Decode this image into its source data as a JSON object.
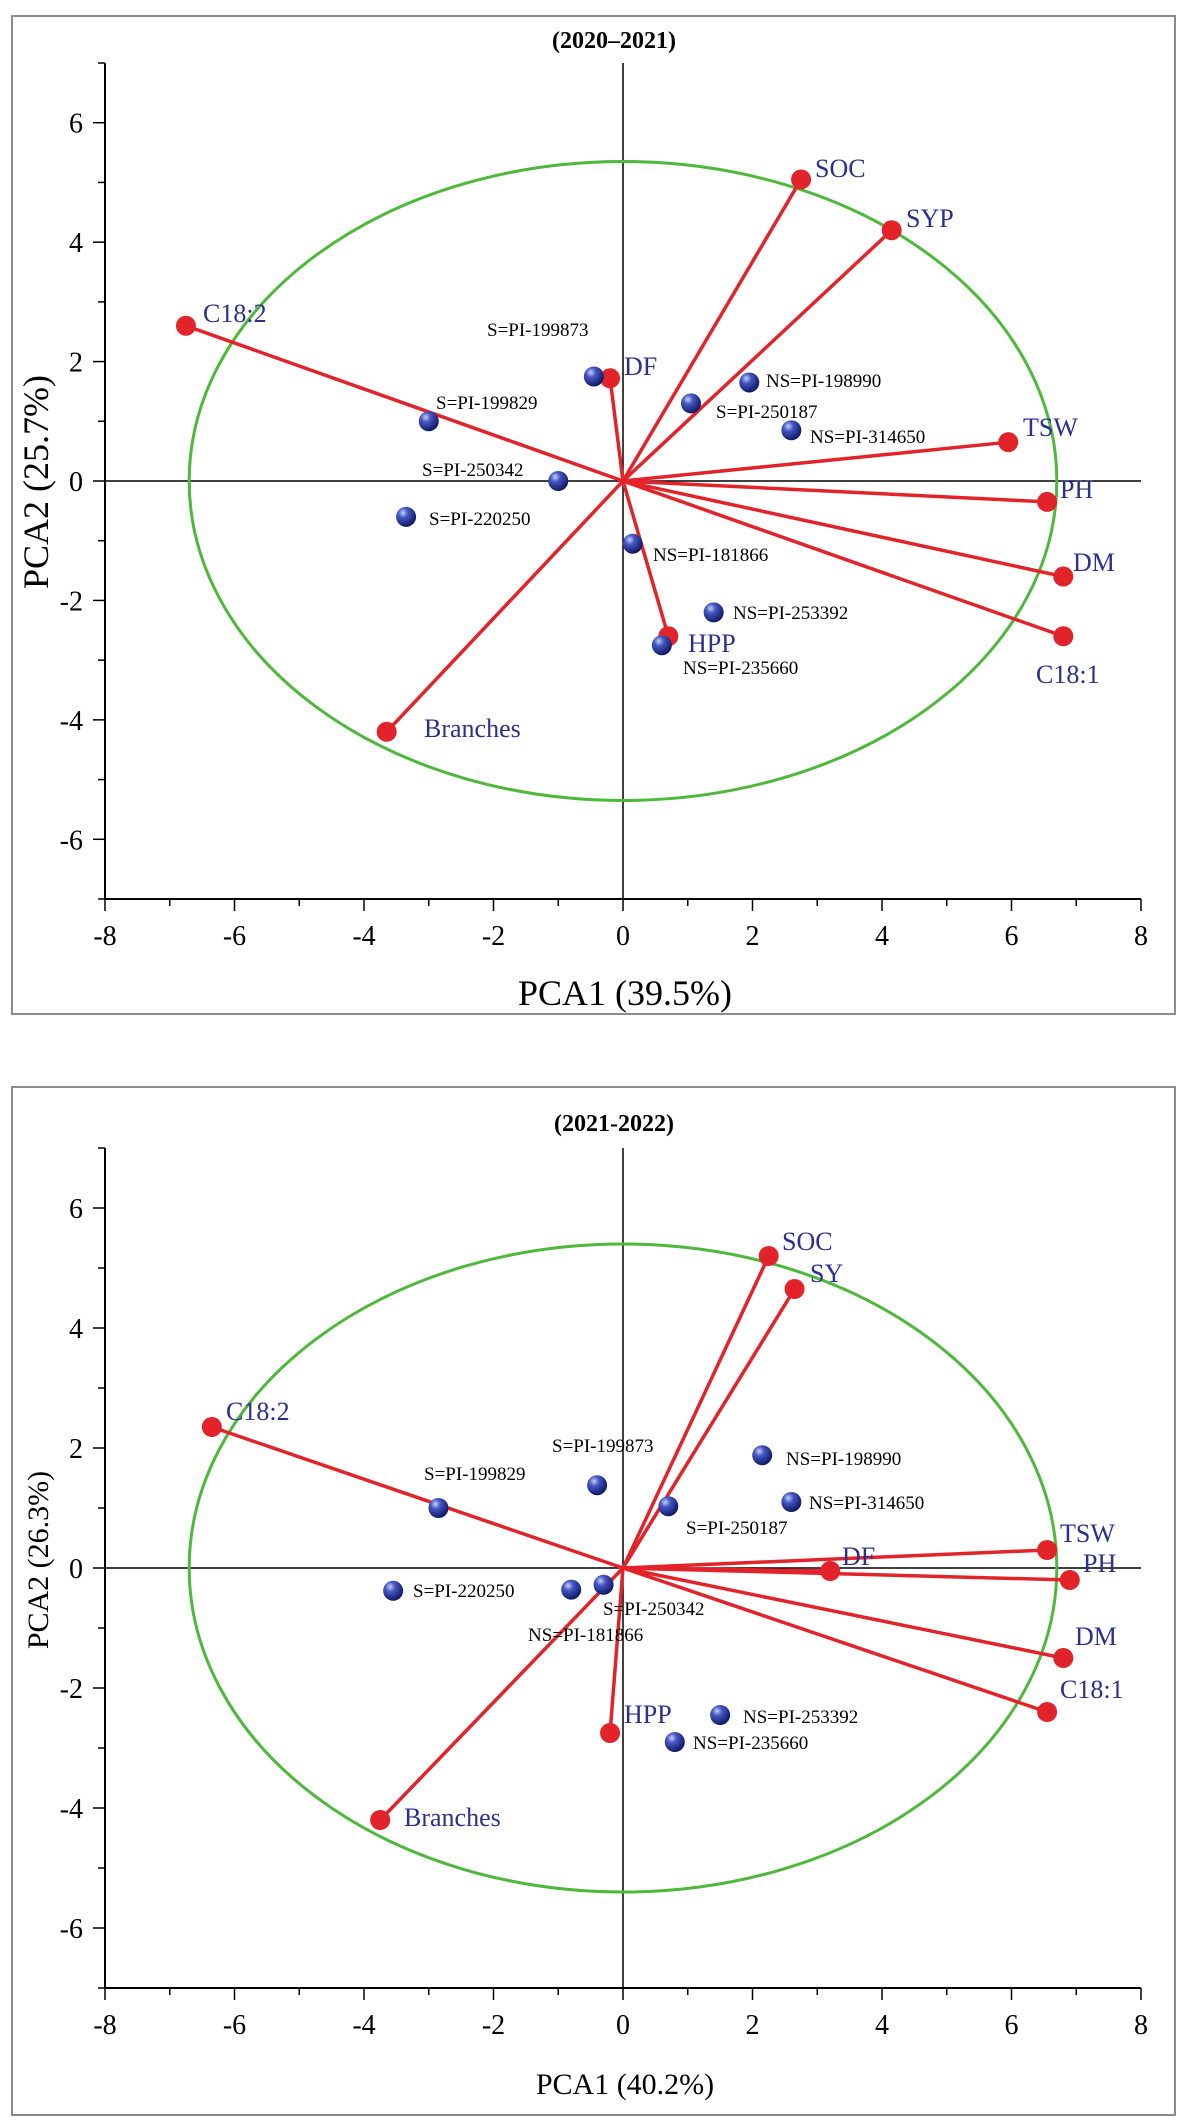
{
  "colors": {
    "circle": "#4db83a",
    "vector": "#e2232a",
    "variable_label": "#2b2f8e",
    "genotype_point": "#2b3aa8"
  },
  "chart_data": [
    {
      "type": "scatter",
      "subtype": "pca-biplot",
      "title": "(2020–2021)",
      "xlabel": "PCA1 (39.5%)",
      "ylabel": "PCA2 (25.7%)",
      "xlim": [
        -8,
        8
      ],
      "ylim": [
        -7,
        7
      ],
      "xticks": [
        -8,
        -6,
        -4,
        -2,
        0,
        2,
        4,
        6,
        8
      ],
      "yticks": [
        -6,
        -4,
        -2,
        0,
        2,
        4,
        6
      ],
      "circle": {
        "cx": 0,
        "cy": 0,
        "rx": 6.7,
        "ry": 5.35
      },
      "variables": [
        {
          "name": "SOC",
          "x": 2.75,
          "y": 5.05
        },
        {
          "name": "SYP",
          "x": 4.15,
          "y": 4.2
        },
        {
          "name": "C18:2",
          "x": -6.75,
          "y": 2.6
        },
        {
          "name": "DF",
          "x": -0.2,
          "y": 1.72
        },
        {
          "name": "TSW",
          "x": 5.95,
          "y": 0.65
        },
        {
          "name": "PH",
          "x": 6.55,
          "y": -0.35
        },
        {
          "name": "DM",
          "x": 6.8,
          "y": -1.6
        },
        {
          "name": "C18:1",
          "x": 6.8,
          "y": -2.6
        },
        {
          "name": "HPP",
          "x": 0.7,
          "y": -2.6
        },
        {
          "name": "Branches",
          "x": -3.65,
          "y": -4.2
        }
      ],
      "genotypes": [
        {
          "name": "S=PI-199873",
          "x": -0.45,
          "y": 1.75
        },
        {
          "name": "NS=PI-198990",
          "x": 1.95,
          "y": 1.65
        },
        {
          "name": "S=PI-250187",
          "x": 1.05,
          "y": 1.3
        },
        {
          "name": "S=PI-199829",
          "x": -3.0,
          "y": 1.0
        },
        {
          "name": "NS=PI-314650",
          "x": 2.6,
          "y": 0.85
        },
        {
          "name": "S=PI-250342",
          "x": -1.0,
          "y": 0.0
        },
        {
          "name": "S=PI-220250",
          "x": -3.35,
          "y": -0.6
        },
        {
          "name": "NS=PI-181866",
          "x": 0.15,
          "y": -1.05
        },
        {
          "name": "NS=PI-253392",
          "x": 1.4,
          "y": -2.2
        },
        {
          "name": "NS=PI-235660",
          "x": 0.6,
          "y": -2.75
        }
      ]
    },
    {
      "type": "scatter",
      "subtype": "pca-biplot",
      "title": "(2021-2022)",
      "xlabel": "PCA1 (40.2%)",
      "ylabel": "PCA2 (26.3%)",
      "xlim": [
        -8,
        8
      ],
      "ylim": [
        -7,
        7
      ],
      "xticks": [
        -8,
        -6,
        -4,
        -2,
        0,
        2,
        4,
        6,
        8
      ],
      "yticks": [
        -6,
        -4,
        -2,
        0,
        2,
        4,
        6
      ],
      "circle": {
        "cx": 0,
        "cy": 0,
        "rx": 6.7,
        "ry": 5.4
      },
      "variables": [
        {
          "name": "SOC",
          "x": 2.25,
          "y": 5.2
        },
        {
          "name": "SY",
          "x": 2.65,
          "y": 4.65
        },
        {
          "name": "C18:2",
          "x": -6.35,
          "y": 2.35
        },
        {
          "name": "DF",
          "x": 3.2,
          "y": -0.05
        },
        {
          "name": "TSW",
          "x": 6.55,
          "y": 0.3
        },
        {
          "name": "PH",
          "x": 6.9,
          "y": -0.2
        },
        {
          "name": "DM",
          "x": 6.8,
          "y": -1.5
        },
        {
          "name": "C18:1",
          "x": 6.55,
          "y": -2.4
        },
        {
          "name": "HPP",
          "x": -0.2,
          "y": -2.75
        },
        {
          "name": "Branches",
          "x": -3.75,
          "y": -4.2
        }
      ],
      "genotypes": [
        {
          "name": "S=PI-199873",
          "x": -0.4,
          "y": 1.38
        },
        {
          "name": "NS=PI-198990",
          "x": 2.15,
          "y": 1.88
        },
        {
          "name": "NS=PI-314650",
          "x": 2.6,
          "y": 1.1
        },
        {
          "name": "S=PI-250187",
          "x": 0.7,
          "y": 1.03
        },
        {
          "name": "S=PI-199829",
          "x": -2.85,
          "y": 1.0
        },
        {
          "name": "S=PI-220250",
          "x": -3.55,
          "y": -0.38
        },
        {
          "name": "NS=PI-181866",
          "x": -0.8,
          "y": -0.36
        },
        {
          "name": "S=PI-250342",
          "x": -0.3,
          "y": -0.28
        },
        {
          "name": "NS=PI-253392",
          "x": 1.5,
          "y": -2.45
        },
        {
          "name": "NS=PI-235660",
          "x": 0.8,
          "y": -2.9
        }
      ]
    }
  ]
}
